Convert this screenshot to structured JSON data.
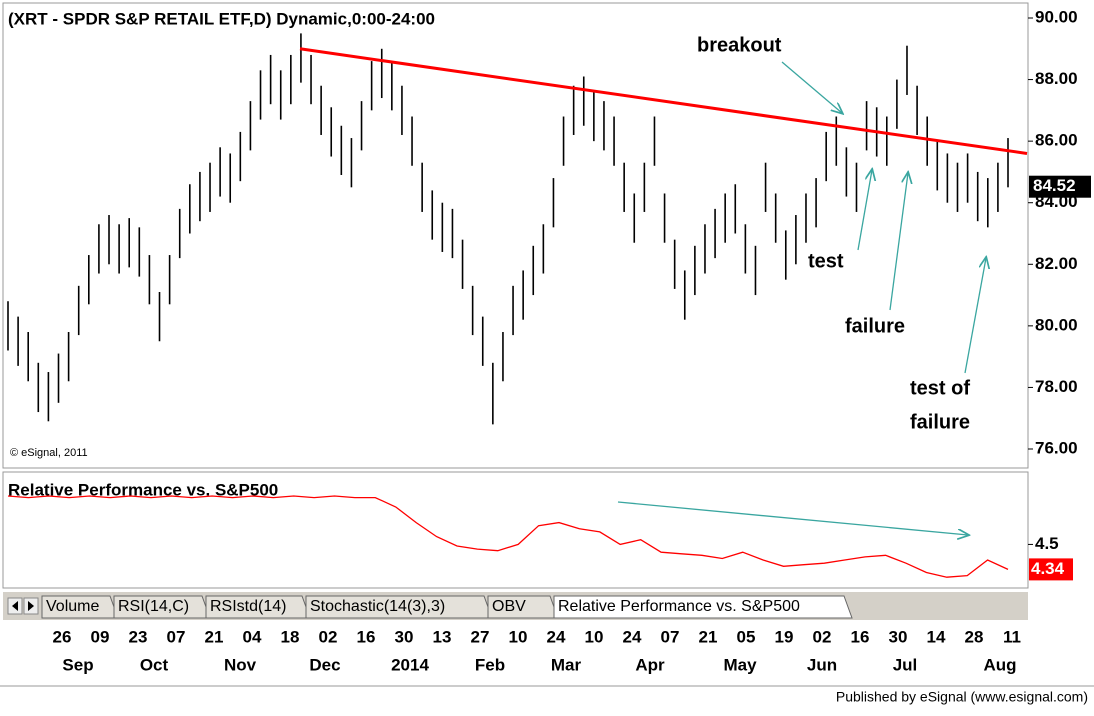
{
  "chart_data": {
    "type": "ohlc",
    "title": "(XRT - SPDR S&P RETAIL ETF,D) Dynamic,0:00-24:00",
    "copyright": "© eSignal, 2011",
    "price": {
      "high": [
        80.8,
        80.3,
        79.8,
        78.8,
        78.5,
        79.1,
        79.8,
        81.3,
        82.3,
        83.3,
        83.6,
        83.3,
        83.5,
        83.2,
        82.3,
        81.1,
        82.3,
        83.8,
        84.6,
        85,
        85.3,
        85.8,
        85.6,
        86.3,
        87.3,
        88.3,
        88.8,
        88.3,
        88.8,
        89.5,
        88.8,
        87.8,
        87.1,
        86.5,
        86.1,
        87.3,
        88.6,
        89,
        88.6,
        87.8,
        86.8,
        85.3,
        84.4,
        84,
        83.8,
        82.8,
        81.3,
        80.3,
        78.8,
        79.8,
        81.3,
        81.8,
        82.6,
        83.3,
        84.8,
        86.8,
        87.8,
        88.1,
        87.6,
        87.3,
        86.8,
        85.3,
        84.3,
        85.3,
        86.8,
        84.3,
        82.8,
        81.8,
        82.6,
        83.3,
        83.8,
        84.3,
        84.6,
        83.3,
        82.6,
        85.3,
        84.3,
        83.1,
        83.6,
        84.3,
        84.8,
        86.3,
        86.8,
        85.8,
        85.3,
        87.3,
        87.1,
        86.8,
        88,
        89.1,
        87.8,
        86.8,
        86,
        85.6,
        85.3,
        85.6,
        85,
        84.8,
        85.3,
        86.1
      ],
      "low": [
        79.2,
        78.7,
        78.2,
        77.2,
        76.9,
        77.5,
        78.2,
        79.7,
        80.7,
        81.7,
        82,
        81.7,
        81.9,
        81.6,
        80.7,
        79.5,
        80.7,
        82.2,
        83,
        83.4,
        83.7,
        84.2,
        84,
        84.7,
        85.7,
        86.7,
        87.2,
        86.7,
        87.2,
        87.9,
        87.2,
        86.2,
        85.5,
        84.9,
        84.5,
        85.7,
        87,
        87.4,
        87,
        86.2,
        85.2,
        83.7,
        82.8,
        82.4,
        82.2,
        81.2,
        79.7,
        78.7,
        76.8,
        78.2,
        79.7,
        80.2,
        81,
        81.7,
        83.2,
        85.2,
        86.2,
        86.5,
        86,
        85.7,
        85.2,
        83.7,
        82.7,
        83.7,
        85.2,
        82.7,
        81.2,
        80.2,
        81,
        81.7,
        82.2,
        82.7,
        83,
        81.7,
        81,
        83.7,
        82.7,
        81.5,
        82,
        82.7,
        83.2,
        84.7,
        85.2,
        84.2,
        83.7,
        85.7,
        85.5,
        85.2,
        86.4,
        87.5,
        86.2,
        85.2,
        84.4,
        84,
        83.7,
        84,
        83.4,
        83.2,
        83.7,
        84.5
      ],
      "color": "#000000",
      "last": {
        "value": 84.52,
        "label": "84.52"
      },
      "ylim": [
        76,
        90
      ],
      "yticks": [
        {
          "value": 76,
          "label": "76.00"
        },
        {
          "value": 78,
          "label": "78.00"
        },
        {
          "value": 80,
          "label": "80.00"
        },
        {
          "value": 82,
          "label": "82.00"
        },
        {
          "value": 84,
          "label": "84.00"
        },
        {
          "value": 86,
          "label": "86.00"
        },
        {
          "value": 88,
          "label": "88.00"
        },
        {
          "value": 90,
          "label": "90.00"
        }
      ],
      "trendline": {
        "start": 89.0,
        "end": 85.6,
        "color": "#ff0000"
      }
    },
    "annotations": [
      {
        "text": [
          "breakout"
        ]
      },
      {
        "text": [
          "test"
        ]
      },
      {
        "text": [
          "failure"
        ]
      },
      {
        "text": [
          "test of",
          "failure"
        ]
      }
    ],
    "relative": {
      "title": "Relative Performance vs. S&P500",
      "values": [
        4.81,
        4.8,
        4.81,
        4.8,
        4.81,
        4.8,
        4.81,
        4.8,
        4.81,
        4.8,
        4.81,
        4.8,
        4.81,
        4.8,
        4.81,
        4.8,
        4.81,
        4.8,
        4.8,
        4.74,
        4.64,
        4.55,
        4.49,
        4.47,
        4.46,
        4.5,
        4.62,
        4.64,
        4.6,
        4.58,
        4.5,
        4.53,
        4.45,
        4.44,
        4.43,
        4.41,
        4.45,
        4.4,
        4.36,
        4.37,
        4.38,
        4.4,
        4.42,
        4.43,
        4.38,
        4.32,
        4.29,
        4.3,
        4.4,
        4.34
      ],
      "color": "#ff0000",
      "ylim": [
        4.24,
        4.9
      ],
      "yticks": [
        4.5
      ],
      "last": 4.34
    },
    "tabs": [
      "Volume",
      "RSI(14,C)",
      "RSIstd(14)",
      "Stochastic(14(3),3)",
      "OBV",
      "Relative Performance vs. S&P500"
    ],
    "day_labels": [
      "26",
      "09",
      "23",
      "07",
      "21",
      "04",
      "18",
      "02",
      "16",
      "30",
      "13",
      "27",
      "10",
      "24",
      "10",
      "24",
      "07",
      "21",
      "05",
      "19",
      "02",
      "16",
      "30",
      "14",
      "28",
      "11"
    ],
    "month_labels": [
      "Sep",
      "Oct",
      "Nov",
      "Dec",
      "2014",
      "Feb",
      "Mar",
      "Apr",
      "May",
      "Jun",
      "Jul",
      "Aug"
    ],
    "footer": "Published by eSignal (www.esignal.com)"
  }
}
